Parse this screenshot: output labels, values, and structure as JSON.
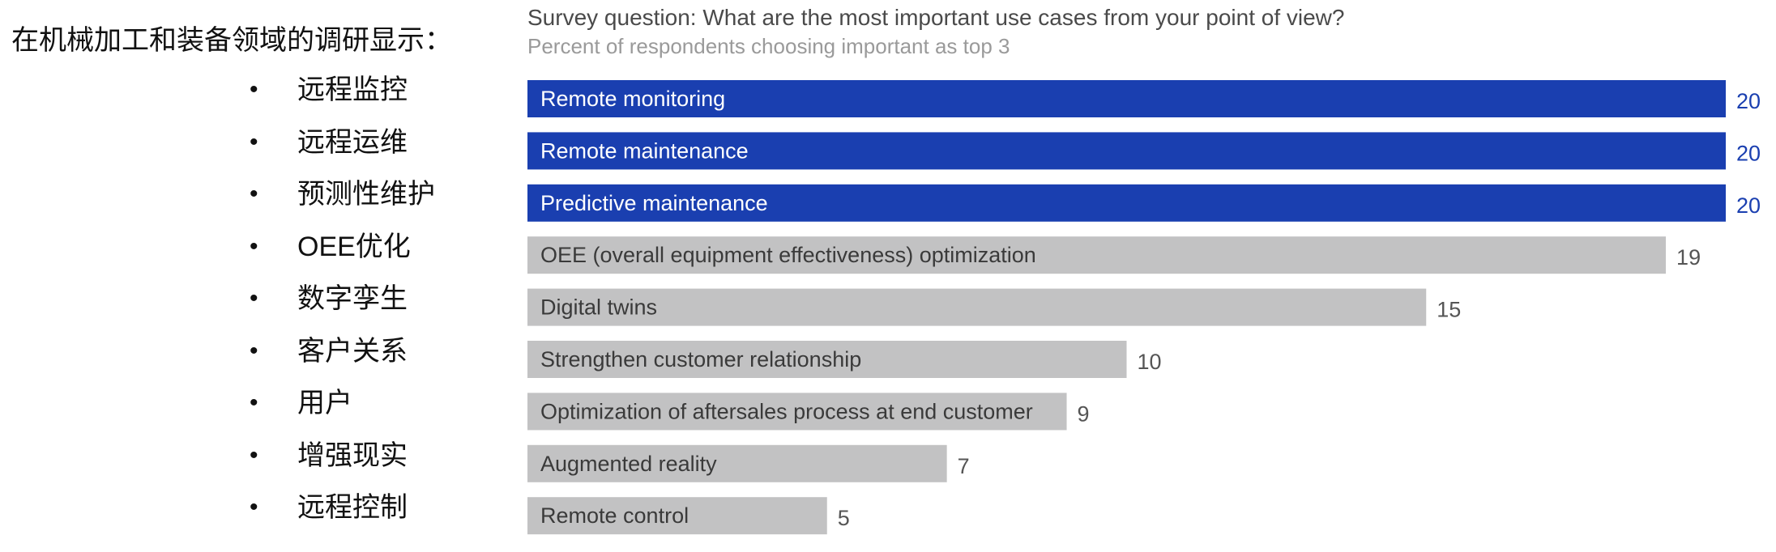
{
  "left_panel": {
    "title": "在机械加工和装备领域的调研显示：",
    "bullet_glyph": "•",
    "items": [
      "远程监控",
      "远程运维",
      "预测性维护",
      "OEE优化",
      "数字孪生",
      "客户关系",
      "用户",
      "增强现实",
      "远程控制"
    ]
  },
  "header": {
    "question": "Survey question: What are the most important use cases from your point of view?",
    "subtitle": "Percent of respondents choosing important as top 3"
  },
  "colors": {
    "highlight_bar": "#1a3fb0",
    "highlight_value": "#1a3fb0",
    "other_bar": "#c2c2c3",
    "other_value": "#555555",
    "highlight_label": "#ffffff",
    "other_label": "#3a3a3a"
  },
  "chart_data": {
    "type": "bar",
    "orientation": "horizontal",
    "categories": [
      "Remote monitoring",
      "Remote maintenance",
      "Predictive maintenance",
      "OEE (overall equipment effectiveness) optimization",
      "Digital twins",
      "Strengthen customer relationship",
      "Optimization of aftersales process at end customer",
      "Augmented reality",
      "Remote control"
    ],
    "values": [
      20,
      20,
      20,
      19,
      15,
      10,
      9,
      7,
      5
    ],
    "value_labels": [
      "20",
      "20",
      "20",
      "19",
      "15",
      "10",
      "9",
      "7",
      "5"
    ],
    "highlighted": [
      true,
      true,
      true,
      false,
      false,
      false,
      false,
      false,
      false
    ],
    "xlim": [
      0,
      20
    ],
    "grid": false,
    "legend": "none"
  }
}
